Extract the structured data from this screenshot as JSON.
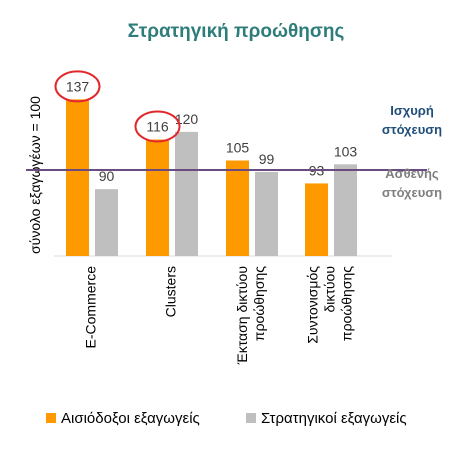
{
  "chart_data": {
    "type": "bar",
    "title": "Στρατηγική προώθησης",
    "xlabel": "",
    "ylabel": "σύνολο εξαγωγέων = 100",
    "ylim": [
      55,
      150
    ],
    "grid": false,
    "legend_position": "bottom",
    "categories": [
      [
        "E-Commerce"
      ],
      [
        "Clusters"
      ],
      [
        "Έκταση δικτύου",
        "προώθησης"
      ],
      [
        "Συντονισμός",
        "δικτύου",
        "προώθησης"
      ]
    ],
    "series": [
      {
        "name": "Αισιόδοξοι εξαγωγείς",
        "color": "#FF9900",
        "values": [
          137,
          116,
          105,
          93
        ]
      },
      {
        "name": "Στρατηγικοί εξαγωγείς",
        "color": "#BFBFBF",
        "values": [
          90,
          120,
          99,
          103
        ]
      }
    ],
    "reference_line": {
      "value": 100,
      "color": "#6B4C80"
    },
    "annotations": {
      "strong": [
        "Ισχυρή",
        "στόχευση"
      ],
      "weak": [
        "Ασθενής",
        "στόχευση"
      ],
      "strong_color": "#1F4E79",
      "weak_color": "#7F7F7F"
    },
    "highlighted_labels": [
      {
        "series": 0,
        "category": 0
      },
      {
        "series": 0,
        "category": 1
      }
    ],
    "highlight_color": "#E3262A",
    "title_color": "#2E7D7A",
    "label_color": "#404040"
  }
}
